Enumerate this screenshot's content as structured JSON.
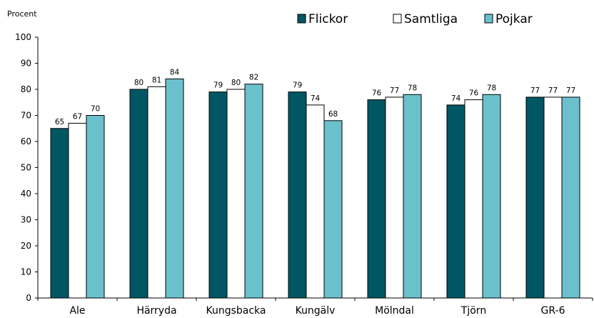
{
  "chart_data": {
    "type": "bar",
    "title": "",
    "xlabel": "",
    "ylabel": "Procent",
    "ylim": [
      0,
      100
    ],
    "yticks": [
      0,
      10,
      20,
      30,
      40,
      50,
      60,
      70,
      80,
      90,
      100
    ],
    "categories": [
      "Ale",
      "Härryda",
      "Kungsbacka",
      "Kungälv",
      "Mölndal",
      "Tjörn",
      "GR-6"
    ],
    "series": [
      {
        "name": "Flickor",
        "color": "#005763",
        "values": [
          65,
          80,
          79,
          79,
          76,
          74,
          77
        ]
      },
      {
        "name": "Samtliga",
        "color": "#ffffff",
        "values": [
          67,
          81,
          80,
          74,
          77,
          76,
          77
        ]
      },
      {
        "name": "Pojkar",
        "color": "#6ac1cc",
        "values": [
          70,
          84,
          82,
          68,
          78,
          78,
          77
        ]
      }
    ],
    "grid": false,
    "legend_position": "top-right"
  }
}
